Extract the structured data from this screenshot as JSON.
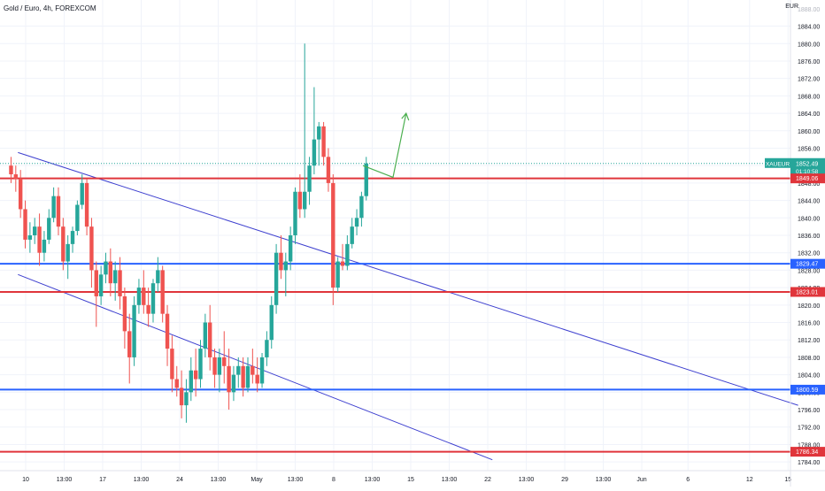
{
  "header": {
    "title": "Gold / Euro, 4h, FOREXCOM",
    "currency": "EUR"
  },
  "chart_data": {
    "type": "candlestick",
    "symbol": "XAUEUR",
    "timeframe": "4h",
    "y_ticks": [
      "1884.00",
      "1880.00",
      "1876.00",
      "1872.00",
      "1868.00",
      "1864.00",
      "1860.00",
      "1856.00",
      "1852.00",
      "1848.00",
      "1844.00",
      "1840.00",
      "1836.00",
      "1832.00",
      "1828.00",
      "1824.00",
      "1820.00",
      "1816.00",
      "1812.00",
      "1808.00",
      "1804.00",
      "1800.00",
      "1796.00",
      "1792.00",
      "1788.00",
      "1784.00"
    ],
    "y_tick_values": [
      1884,
      1880,
      1876,
      1872,
      1868,
      1864,
      1860,
      1856,
      1852,
      1848,
      1844,
      1840,
      1836,
      1832,
      1828,
      1824,
      1820,
      1816,
      1812,
      1808,
      1804,
      1800,
      1796,
      1792,
      1788,
      1784
    ],
    "top_clipped_tick": "1888.00",
    "x_tick_labels": [
      "10",
      "13:00",
      "17",
      "13:00",
      "24",
      "13:00",
      "May",
      "13:00",
      "8",
      "13:00",
      "15",
      "13:00",
      "22",
      "13:00",
      "29",
      "13:00",
      "Jun",
      "6",
      "12",
      "15"
    ],
    "x_tick_index": [
      0,
      0.5,
      1,
      1.5,
      2,
      2.5,
      3,
      3.5,
      4,
      4.5,
      5,
      5.5,
      6,
      6.5,
      7,
      7.5,
      8,
      8.6,
      9.4,
      9.9
    ],
    "current_price": {
      "symbol": "XAUEUR",
      "price": "1852.49",
      "countdown": "01:10:58",
      "value": 1852.49
    },
    "levels": [
      {
        "label": "1849.06",
        "value": 1849.06,
        "color": "#e0353b"
      },
      {
        "label": "1829.47",
        "value": 1829.47,
        "color": "#2962ff"
      },
      {
        "label": "1823.01",
        "value": 1823.01,
        "color": "#e0353b"
      },
      {
        "label": "1800.59",
        "value": 1800.59,
        "color": "#2962ff"
      },
      {
        "label": "1786.34",
        "value": 1786.34,
        "color": "#e0353b"
      }
    ],
    "channel_lines": [
      {
        "from": [
          -0.1,
          1855.0
        ],
        "to": [
          10.03,
          1797.0
        ]
      },
      {
        "from": [
          -0.1,
          1827.0
        ],
        "to": [
          6.06,
          1784.5
        ]
      }
    ],
    "projection_arrow": {
      "points": [
        [
          4.38,
          1852.0
        ],
        [
          4.77,
          1849.3
        ],
        [
          4.94,
          1864.0
        ]
      ]
    },
    "candles": [
      {
        "o": 1852,
        "h": 1854,
        "l": 1848,
        "c": 1850
      },
      {
        "o": 1850,
        "h": 1852,
        "l": 1846,
        "c": 1849
      },
      {
        "o": 1849,
        "h": 1851,
        "l": 1840,
        "c": 1842
      },
      {
        "o": 1842,
        "h": 1844,
        "l": 1833,
        "c": 1835
      },
      {
        "o": 1835,
        "h": 1839,
        "l": 1832,
        "c": 1836
      },
      {
        "o": 1836,
        "h": 1840,
        "l": 1834,
        "c": 1838
      },
      {
        "o": 1838,
        "h": 1841,
        "l": 1829,
        "c": 1832
      },
      {
        "o": 1832,
        "h": 1837,
        "l": 1830,
        "c": 1835
      },
      {
        "o": 1835,
        "h": 1842,
        "l": 1834,
        "c": 1840
      },
      {
        "o": 1840,
        "h": 1847,
        "l": 1839,
        "c": 1845
      },
      {
        "o": 1845,
        "h": 1847,
        "l": 1836,
        "c": 1838
      },
      {
        "o": 1838,
        "h": 1840,
        "l": 1828,
        "c": 1830
      },
      {
        "o": 1830,
        "h": 1836,
        "l": 1826,
        "c": 1834
      },
      {
        "o": 1834,
        "h": 1838,
        "l": 1832,
        "c": 1837
      },
      {
        "o": 1837,
        "h": 1844,
        "l": 1836,
        "c": 1843
      },
      {
        "o": 1843,
        "h": 1850,
        "l": 1842,
        "c": 1848
      },
      {
        "o": 1848,
        "h": 1849,
        "l": 1836,
        "c": 1838
      },
      {
        "o": 1838,
        "h": 1840,
        "l": 1824,
        "c": 1828
      },
      {
        "o": 1828,
        "h": 1830,
        "l": 1815,
        "c": 1822
      },
      {
        "o": 1822,
        "h": 1829,
        "l": 1820,
        "c": 1827
      },
      {
        "o": 1827,
        "h": 1832,
        "l": 1825,
        "c": 1830
      },
      {
        "o": 1830,
        "h": 1833,
        "l": 1822,
        "c": 1825
      },
      {
        "o": 1825,
        "h": 1830,
        "l": 1821,
        "c": 1828
      },
      {
        "o": 1828,
        "h": 1831,
        "l": 1819,
        "c": 1822
      },
      {
        "o": 1822,
        "h": 1824,
        "l": 1810,
        "c": 1814
      },
      {
        "o": 1814,
        "h": 1818,
        "l": 1802,
        "c": 1808
      },
      {
        "o": 1808,
        "h": 1822,
        "l": 1806,
        "c": 1820
      },
      {
        "o": 1820,
        "h": 1826,
        "l": 1818,
        "c": 1824
      },
      {
        "o": 1824,
        "h": 1828,
        "l": 1818,
        "c": 1820
      },
      {
        "o": 1820,
        "h": 1824,
        "l": 1815,
        "c": 1818
      },
      {
        "o": 1818,
        "h": 1826,
        "l": 1816,
        "c": 1825
      },
      {
        "o": 1825,
        "h": 1831,
        "l": 1823,
        "c": 1828
      },
      {
        "o": 1828,
        "h": 1829,
        "l": 1816,
        "c": 1818
      },
      {
        "o": 1818,
        "h": 1820,
        "l": 1806,
        "c": 1810
      },
      {
        "o": 1810,
        "h": 1813,
        "l": 1800,
        "c": 1803
      },
      {
        "o": 1803,
        "h": 1806,
        "l": 1799,
        "c": 1801
      },
      {
        "o": 1801,
        "h": 1805,
        "l": 1794,
        "c": 1797
      },
      {
        "o": 1797,
        "h": 1803,
        "l": 1793,
        "c": 1800
      },
      {
        "o": 1800,
        "h": 1808,
        "l": 1798,
        "c": 1805
      },
      {
        "o": 1805,
        "h": 1810,
        "l": 1799,
        "c": 1803
      },
      {
        "o": 1803,
        "h": 1812,
        "l": 1801,
        "c": 1810
      },
      {
        "o": 1810,
        "h": 1818,
        "l": 1808,
        "c": 1816
      },
      {
        "o": 1816,
        "h": 1820,
        "l": 1805,
        "c": 1808
      },
      {
        "o": 1808,
        "h": 1810,
        "l": 1801,
        "c": 1804
      },
      {
        "o": 1804,
        "h": 1810,
        "l": 1800,
        "c": 1808
      },
      {
        "o": 1808,
        "h": 1814,
        "l": 1802,
        "c": 1806
      },
      {
        "o": 1806,
        "h": 1810,
        "l": 1796,
        "c": 1800
      },
      {
        "o": 1800,
        "h": 1806,
        "l": 1798,
        "c": 1804
      },
      {
        "o": 1804,
        "h": 1808,
        "l": 1801,
        "c": 1806
      },
      {
        "o": 1806,
        "h": 1808,
        "l": 1799,
        "c": 1801
      },
      {
        "o": 1801,
        "h": 1808,
        "l": 1800,
        "c": 1806
      },
      {
        "o": 1806,
        "h": 1810,
        "l": 1802,
        "c": 1804
      },
      {
        "o": 1804,
        "h": 1808,
        "l": 1800,
        "c": 1802
      },
      {
        "o": 1802,
        "h": 1809,
        "l": 1801,
        "c": 1808
      },
      {
        "o": 1808,
        "h": 1814,
        "l": 1806,
        "c": 1812
      },
      {
        "o": 1812,
        "h": 1822,
        "l": 1810,
        "c": 1820
      },
      {
        "o": 1820,
        "h": 1834,
        "l": 1818,
        "c": 1832
      },
      {
        "o": 1832,
        "h": 1836,
        "l": 1826,
        "c": 1828
      },
      {
        "o": 1828,
        "h": 1832,
        "l": 1822,
        "c": 1830
      },
      {
        "o": 1830,
        "h": 1838,
        "l": 1828,
        "c": 1836
      },
      {
        "o": 1836,
        "h": 1847,
        "l": 1834,
        "c": 1846
      },
      {
        "o": 1846,
        "h": 1850,
        "l": 1840,
        "c": 1842
      },
      {
        "o": 1842,
        "h": 1880,
        "l": 1840,
        "c": 1846
      },
      {
        "o": 1846,
        "h": 1854,
        "l": 1843,
        "c": 1852
      },
      {
        "o": 1852,
        "h": 1870,
        "l": 1850,
        "c": 1858
      },
      {
        "o": 1858,
        "h": 1862,
        "l": 1852,
        "c": 1861
      },
      {
        "o": 1861,
        "h": 1862,
        "l": 1852,
        "c": 1854
      },
      {
        "o": 1854,
        "h": 1856,
        "l": 1846,
        "c": 1848
      },
      {
        "o": 1848,
        "h": 1850,
        "l": 1820,
        "c": 1824
      },
      {
        "o": 1824,
        "h": 1831,
        "l": 1823,
        "c": 1830
      },
      {
        "o": 1830,
        "h": 1834,
        "l": 1828,
        "c": 1829
      },
      {
        "o": 1829,
        "h": 1836,
        "l": 1828,
        "c": 1834
      },
      {
        "o": 1834,
        "h": 1840,
        "l": 1833,
        "c": 1838
      },
      {
        "o": 1838,
        "h": 1842,
        "l": 1836,
        "c": 1840
      },
      {
        "o": 1840,
        "h": 1846,
        "l": 1838,
        "c": 1845
      },
      {
        "o": 1845,
        "h": 1854,
        "l": 1844,
        "c": 1852.49
      }
    ],
    "ylim": [
      1782,
      1890
    ],
    "xlim": [
      -0.2,
      10.1
    ]
  }
}
